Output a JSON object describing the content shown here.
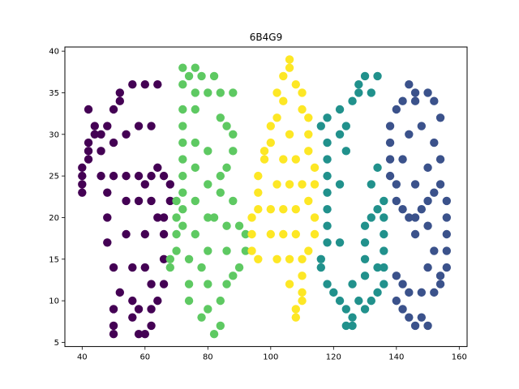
{
  "chart_data": {
    "type": "scatter",
    "title": "6B4G9",
    "xlabel": "",
    "ylabel": "",
    "xlim": [
      34.5,
      162.5
    ],
    "ylim": [
      4.5,
      40.5
    ],
    "xticks": [
      40,
      60,
      80,
      100,
      120,
      140,
      160
    ],
    "yticks": [
      5,
      10,
      15,
      20,
      25,
      30,
      35,
      40
    ],
    "grid": false,
    "series": [
      {
        "color": "#440154",
        "points": [
          [
            42,
            33
          ],
          [
            44,
            31
          ],
          [
            44,
            30
          ],
          [
            42,
            29
          ],
          [
            42,
            28
          ],
          [
            42,
            27
          ],
          [
            40,
            26
          ],
          [
            40,
            25
          ],
          [
            40,
            24
          ],
          [
            40,
            23
          ],
          [
            46,
            30
          ],
          [
            48,
            31
          ],
          [
            50,
            33
          ],
          [
            52,
            34
          ],
          [
            52,
            35
          ],
          [
            56,
            36
          ],
          [
            60,
            36
          ],
          [
            64,
            36
          ],
          [
            46,
            28
          ],
          [
            50,
            29
          ],
          [
            54,
            30
          ],
          [
            58,
            31
          ],
          [
            62,
            31
          ],
          [
            46,
            25
          ],
          [
            50,
            25
          ],
          [
            54,
            25
          ],
          [
            58,
            25
          ],
          [
            48,
            23
          ],
          [
            48,
            20
          ],
          [
            48,
            17
          ],
          [
            50,
            14
          ],
          [
            52,
            11
          ],
          [
            50,
            9
          ],
          [
            50,
            7
          ],
          [
            50,
            6
          ],
          [
            54,
            22
          ],
          [
            54,
            18
          ],
          [
            56,
            14
          ],
          [
            56,
            10
          ],
          [
            56,
            8
          ],
          [
            58,
            6
          ],
          [
            60,
            6
          ],
          [
            60,
            24
          ],
          [
            62,
            25
          ],
          [
            64,
            26
          ],
          [
            66,
            25
          ],
          [
            68,
            24
          ],
          [
            68,
            22
          ],
          [
            66,
            20
          ],
          [
            58,
            22
          ],
          [
            62,
            22
          ],
          [
            64,
            20
          ],
          [
            66,
            18
          ],
          [
            66,
            15
          ],
          [
            66,
            12
          ],
          [
            64,
            10
          ],
          [
            62,
            9
          ],
          [
            60,
            18
          ],
          [
            60,
            14
          ],
          [
            62,
            12
          ],
          [
            58,
            9
          ],
          [
            62,
            7
          ]
        ]
      },
      {
        "color": "#5ec962",
        "points": [
          [
            72,
            38
          ],
          [
            76,
            38
          ],
          [
            74,
            37
          ],
          [
            78,
            37
          ],
          [
            82,
            37
          ],
          [
            72,
            36
          ],
          [
            76,
            35
          ],
          [
            80,
            35
          ],
          [
            84,
            35
          ],
          [
            88,
            35
          ],
          [
            72,
            33
          ],
          [
            72,
            31
          ],
          [
            72,
            29
          ],
          [
            72,
            27
          ],
          [
            72,
            25
          ],
          [
            72,
            23
          ],
          [
            72,
            21
          ],
          [
            72,
            19
          ],
          [
            70,
            22
          ],
          [
            70,
            20
          ],
          [
            70,
            18
          ],
          [
            70,
            16
          ],
          [
            68,
            15
          ],
          [
            68,
            14
          ],
          [
            76,
            33
          ],
          [
            76,
            29
          ],
          [
            76,
            26
          ],
          [
            76,
            22
          ],
          [
            76,
            18
          ],
          [
            74,
            15
          ],
          [
            74,
            12
          ],
          [
            74,
            10
          ],
          [
            84,
            32
          ],
          [
            86,
            31
          ],
          [
            88,
            30
          ],
          [
            88,
            28
          ],
          [
            86,
            26
          ],
          [
            84,
            25
          ],
          [
            80,
            24
          ],
          [
            84,
            23
          ],
          [
            88,
            22
          ],
          [
            82,
            20
          ],
          [
            86,
            19
          ],
          [
            90,
            19
          ],
          [
            92,
            18
          ],
          [
            92,
            16
          ],
          [
            90,
            14
          ],
          [
            88,
            13
          ],
          [
            86,
            12
          ],
          [
            84,
            10
          ],
          [
            80,
            9
          ],
          [
            78,
            8
          ],
          [
            84,
            7
          ],
          [
            82,
            6
          ],
          [
            80,
            28
          ],
          [
            80,
            20
          ],
          [
            80,
            16
          ],
          [
            80,
            12
          ],
          [
            78,
            14
          ],
          [
            86,
            16
          ]
        ]
      },
      {
        "color": "#fde725",
        "points": [
          [
            106,
            39
          ],
          [
            106,
            38
          ],
          [
            104,
            37
          ],
          [
            108,
            36
          ],
          [
            110,
            35
          ],
          [
            102,
            35
          ],
          [
            104,
            34
          ],
          [
            110,
            33
          ],
          [
            112,
            32
          ],
          [
            102,
            32
          ],
          [
            100,
            31
          ],
          [
            100,
            29
          ],
          [
            98,
            28
          ],
          [
            98,
            27
          ],
          [
            96,
            25
          ],
          [
            96,
            23
          ],
          [
            96,
            21
          ],
          [
            94,
            20
          ],
          [
            94,
            18
          ],
          [
            94,
            16
          ],
          [
            96,
            15
          ],
          [
            112,
            30
          ],
          [
            112,
            28
          ],
          [
            114,
            26
          ],
          [
            114,
            24
          ],
          [
            112,
            22
          ],
          [
            114,
            20
          ],
          [
            114,
            18
          ],
          [
            112,
            16
          ],
          [
            110,
            15
          ],
          [
            110,
            13
          ],
          [
            110,
            11
          ],
          [
            110,
            10
          ],
          [
            108,
            9
          ],
          [
            108,
            8
          ],
          [
            102,
            24
          ],
          [
            106,
            24
          ],
          [
            110,
            24
          ],
          [
            100,
            21
          ],
          [
            104,
            21
          ],
          [
            108,
            21
          ],
          [
            100,
            18
          ],
          [
            104,
            18
          ],
          [
            108,
            18
          ],
          [
            106,
            30
          ],
          [
            104,
            27
          ],
          [
            108,
            27
          ],
          [
            106,
            15
          ],
          [
            106,
            12
          ],
          [
            102,
            15
          ]
        ]
      },
      {
        "color": "#21918c",
        "points": [
          [
            130,
            37
          ],
          [
            134,
            37
          ],
          [
            128,
            36
          ],
          [
            132,
            35
          ],
          [
            126,
            34
          ],
          [
            122,
            33
          ],
          [
            118,
            32
          ],
          [
            116,
            31
          ],
          [
            118,
            29
          ],
          [
            118,
            27
          ],
          [
            118,
            25
          ],
          [
            118,
            23
          ],
          [
            118,
            21
          ],
          [
            118,
            19
          ],
          [
            118,
            17
          ],
          [
            116,
            15
          ],
          [
            116,
            14
          ],
          [
            118,
            12
          ],
          [
            120,
            11
          ],
          [
            122,
            10
          ],
          [
            124,
            9
          ],
          [
            126,
            8
          ],
          [
            124,
            7
          ],
          [
            126,
            7
          ],
          [
            128,
            10
          ],
          [
            130,
            9
          ],
          [
            132,
            10
          ],
          [
            134,
            11
          ],
          [
            136,
            12
          ],
          [
            136,
            14
          ],
          [
            136,
            16
          ],
          [
            136,
            18
          ],
          [
            136,
            20
          ],
          [
            136,
            22
          ],
          [
            134,
            21
          ],
          [
            132,
            20
          ],
          [
            130,
            19
          ],
          [
            130,
            17
          ],
          [
            130,
            15
          ],
          [
            130,
            13
          ],
          [
            132,
            24
          ],
          [
            134,
            26
          ],
          [
            124,
            28
          ],
          [
            122,
            30
          ],
          [
            122,
            24
          ],
          [
            122,
            17
          ],
          [
            126,
            12
          ],
          [
            134,
            14
          ],
          [
            128,
            35
          ],
          [
            124,
            31
          ]
        ]
      },
      {
        "color": "#3b528b",
        "points": [
          [
            144,
            36
          ],
          [
            146,
            35
          ],
          [
            150,
            35
          ],
          [
            142,
            34
          ],
          [
            152,
            34
          ],
          [
            140,
            33
          ],
          [
            154,
            32
          ],
          [
            138,
            31
          ],
          [
            138,
            29
          ],
          [
            138,
            27
          ],
          [
            138,
            25
          ],
          [
            140,
            24
          ],
          [
            140,
            22
          ],
          [
            142,
            21
          ],
          [
            144,
            20
          ],
          [
            146,
            20
          ],
          [
            148,
            21
          ],
          [
            150,
            22
          ],
          [
            152,
            23
          ],
          [
            154,
            24
          ],
          [
            156,
            22
          ],
          [
            156,
            20
          ],
          [
            156,
            18
          ],
          [
            156,
            16
          ],
          [
            156,
            14
          ],
          [
            154,
            13
          ],
          [
            154,
            12
          ],
          [
            152,
            11
          ],
          [
            148,
            11
          ],
          [
            144,
            11
          ],
          [
            140,
            10
          ],
          [
            142,
            9
          ],
          [
            144,
            8
          ],
          [
            146,
            7
          ],
          [
            150,
            7
          ],
          [
            148,
            8
          ],
          [
            140,
            13
          ],
          [
            142,
            12
          ],
          [
            146,
            18
          ],
          [
            150,
            19
          ],
          [
            144,
            30
          ],
          [
            148,
            31
          ],
          [
            152,
            29
          ],
          [
            154,
            27
          ],
          [
            142,
            27
          ],
          [
            150,
            26
          ],
          [
            146,
            24
          ],
          [
            152,
            16
          ],
          [
            150,
            14
          ],
          [
            146,
            34
          ]
        ]
      }
    ]
  }
}
